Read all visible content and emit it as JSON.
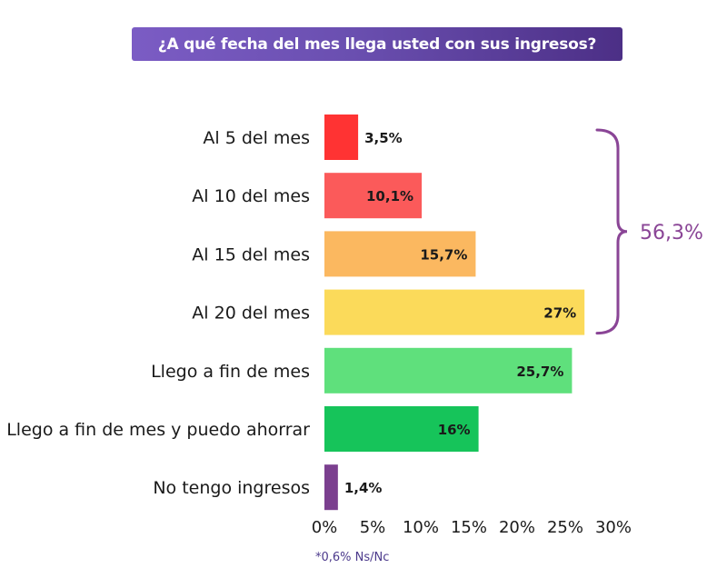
{
  "chart_data": {
    "type": "bar",
    "orientation": "horizontal",
    "title": "¿A qué fecha del mes llega usted con sus ingresos?",
    "categories": [
      "Al 5 del mes",
      "Al 10 del mes",
      "Al 15 del mes",
      "Al 20 del mes",
      "Llego a fin de mes",
      "Llego a fin de mes y puedo ahorrar",
      "No tengo ingresos"
    ],
    "values": [
      3.5,
      10.1,
      15.7,
      27,
      25.7,
      16,
      1.4
    ],
    "value_labels": [
      "3,5%",
      "10,1%",
      "15,7%",
      "27%",
      "25,7%",
      "16%",
      "1,4%"
    ],
    "colors": [
      "#ff3333",
      "#fb5a5a",
      "#fbb860",
      "#fbda5a",
      "#5fe07c",
      "#16c45a",
      "#7b3f8f"
    ],
    "xlim": [
      0,
      30
    ],
    "xticks": [
      "0%",
      "5%",
      "10%",
      "15%",
      "20%",
      "25%",
      "30%"
    ],
    "annotation": {
      "label": "56,3%",
      "spans": [
        "Al 5 del mes",
        "Al 20 del mes"
      ],
      "color": "#8a4596"
    },
    "footnote": "*0,6% Ns/Nc"
  }
}
